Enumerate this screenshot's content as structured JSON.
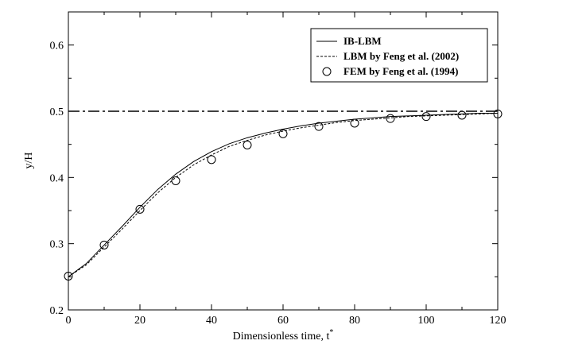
{
  "chart_data": {
    "type": "line",
    "title": "",
    "xlabel": "Dimensionless time, t",
    "xlabel_superscript": "*",
    "ylabel": "y/H",
    "xlim": [
      0,
      120
    ],
    "ylim": [
      0.2,
      0.65
    ],
    "x_ticks": [
      0,
      20,
      40,
      60,
      80,
      100,
      120
    ],
    "y_ticks": [
      0.2,
      0.3,
      0.4,
      0.5,
      0.6
    ],
    "x_tick_labels": [
      "0",
      "20",
      "40",
      "60",
      "80",
      "100",
      "120"
    ],
    "y_tick_labels": [
      "0.2",
      "0.3",
      "0.4",
      "0.5",
      "0.6"
    ],
    "grid": false,
    "legend_position": "top-right",
    "reference_line": {
      "y": 0.5,
      "style": "dash-dot"
    },
    "series": [
      {
        "name": "IB-LBM",
        "style": "solid",
        "x": [
          0,
          5,
          10,
          15,
          20,
          25,
          30,
          35,
          40,
          45,
          50,
          55,
          60,
          65,
          70,
          75,
          80,
          85,
          90,
          95,
          100,
          105,
          110,
          115,
          120
        ],
        "y": [
          0.25,
          0.27,
          0.298,
          0.326,
          0.355,
          0.382,
          0.405,
          0.424,
          0.439,
          0.451,
          0.46,
          0.467,
          0.473,
          0.478,
          0.482,
          0.485,
          0.488,
          0.49,
          0.492,
          0.493,
          0.494,
          0.495,
          0.496,
          0.497,
          0.497
        ]
      },
      {
        "name": "LBM by Feng et al. (2002)",
        "style": "dashed",
        "x": [
          0,
          5,
          10,
          15,
          20,
          25,
          30,
          35,
          40,
          45,
          50,
          55,
          60,
          65,
          70,
          75,
          80,
          85,
          90,
          95,
          100,
          105,
          110,
          115,
          120
        ],
        "y": [
          0.25,
          0.268,
          0.295,
          0.322,
          0.35,
          0.377,
          0.4,
          0.419,
          0.434,
          0.447,
          0.456,
          0.464,
          0.47,
          0.475,
          0.479,
          0.483,
          0.486,
          0.488,
          0.49,
          0.492,
          0.493,
          0.494,
          0.495,
          0.496,
          0.497
        ]
      },
      {
        "name": "FEM by Feng et al. (1994)",
        "style": "circles",
        "x": [
          0,
          10,
          20,
          30,
          40,
          50,
          60,
          70,
          80,
          90,
          100,
          110,
          120
        ],
        "y": [
          0.251,
          0.298,
          0.352,
          0.395,
          0.427,
          0.449,
          0.466,
          0.477,
          0.482,
          0.489,
          0.492,
          0.494,
          0.496
        ]
      }
    ]
  }
}
